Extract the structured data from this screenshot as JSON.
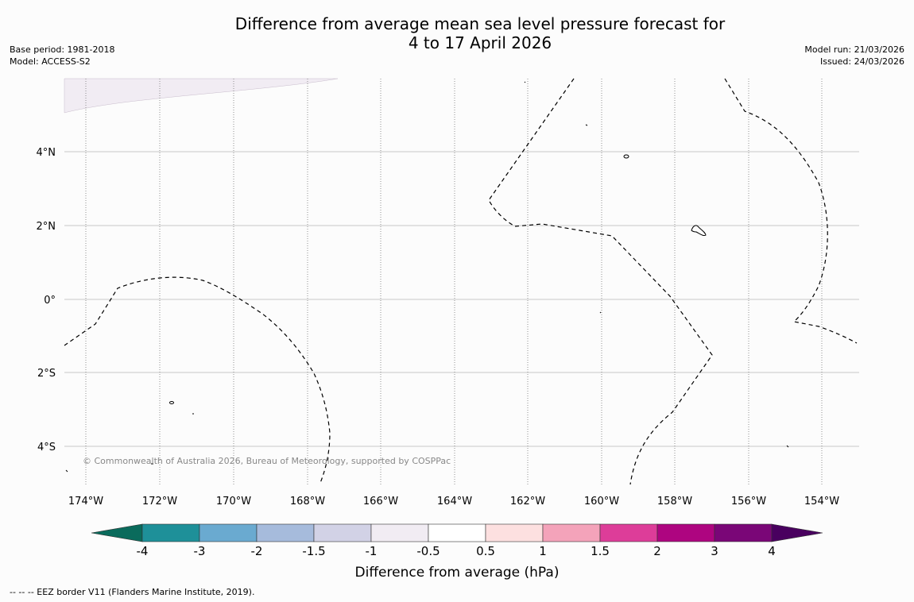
{
  "title": {
    "line1": "Difference from average mean sea level pressure forecast for",
    "line2": "4 to 17 April 2026"
  },
  "meta": {
    "base_period": "Base period: 1981-2018",
    "model": "Model: ACCESS-S2",
    "model_run": "Model run: 21/03/2026",
    "issued": "Issued: 24/03/2026"
  },
  "map": {
    "lat_labels": [
      "4°N",
      "2°N",
      "0°",
      "2°S",
      "4°S"
    ],
    "lon_labels": [
      "174°W",
      "172°W",
      "170°W",
      "168°W",
      "166°W",
      "164°W",
      "162°W",
      "160°W",
      "158°W",
      "156°W",
      "154°W"
    ],
    "copyright": "© Commonwealth of Australia 2026, Bureau of Meteorology, supported by COSPPac",
    "anomaly_fill_color": "#f1ecf3",
    "border_style_note": "dashed EEZ border"
  },
  "colorbar": {
    "label": "Difference from average (hPa)",
    "tick_labels": [
      "-4",
      "-3",
      "-2",
      "-1.5",
      "-1",
      "-0.5",
      "0.5",
      "1",
      "1.5",
      "2",
      "3",
      "4"
    ],
    "colors": [
      "#0a6b5c",
      "#1e9099",
      "#6aaad0",
      "#a6bbdc",
      "#d2d2e6",
      "#f1ecf3",
      "#ffffff",
      "#fde0e0",
      "#f4a3ba",
      "#dd3d99",
      "#ae0580",
      "#7a0677",
      "#49005f"
    ]
  },
  "footnote": "--  --  -- EEZ border V11 (Flanders Marine Institute, 2019)."
}
